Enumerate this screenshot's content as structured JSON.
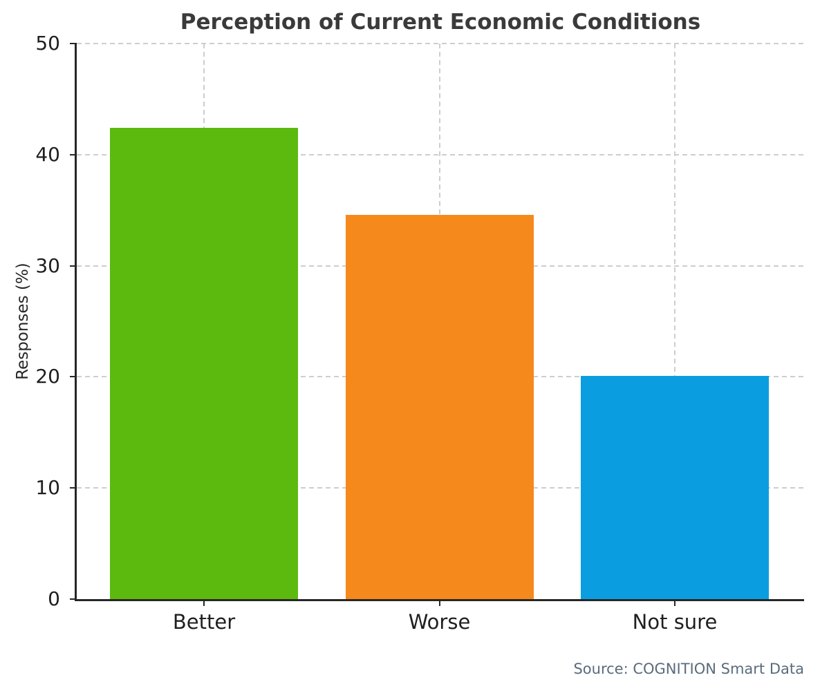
{
  "chart_data": {
    "type": "bar",
    "title": "Perception of Current Economic Conditions",
    "xlabel": "",
    "ylabel": "Responses (%)",
    "categories": [
      "Better",
      "Worse",
      "Not sure"
    ],
    "values": [
      42.4,
      34.6,
      20.1
    ],
    "bar_colors": [
      "#5cba0e",
      "#f6891c",
      "#0a9ee0"
    ],
    "ylim": [
      0,
      50
    ],
    "yticks": [
      0,
      10,
      20,
      30,
      40,
      50
    ],
    "grid": "dashed, horizontal at each ytick and vertical at each category center",
    "legend": "none",
    "source": "Source: COGNITION Smart Data"
  },
  "colors": {
    "grid": "#cdcdcd",
    "axis": "#262626",
    "title": "#3a3a3a",
    "tick_labels": "#1f1f1f",
    "source_text": "#5a6b7d",
    "background": "#ffffff"
  }
}
